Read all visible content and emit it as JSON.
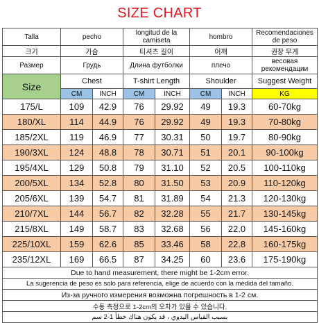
{
  "title": "SIZE CHART",
  "header": {
    "es": [
      "Talla",
      "pecho",
      "longitud de la camiseta",
      "hombro",
      "Recomendaciones de peso"
    ],
    "kr": [
      "크기",
      "가슴",
      "티셔츠 길이",
      "어깨",
      "권장 무게"
    ],
    "ru": [
      "Размер",
      "Грудь",
      "Длина футболки",
      "плечо",
      "весовая рекомендации"
    ],
    "en": {
      "size": "Size",
      "chest": "Chest",
      "length": "T-shirt Length",
      "shoulder": "Shoulder",
      "weight": "Suggest Weight"
    },
    "units": {
      "cm": "CM",
      "inch": "INCH",
      "kg": "KG"
    }
  },
  "rows": [
    {
      "size": "175/L",
      "chest_cm": "109",
      "chest_in": "42.9",
      "len_cm": "76",
      "len_in": "29.92",
      "sh_cm": "49",
      "sh_in": "19.3",
      "weight": "60-70kg"
    },
    {
      "size": "180/XL",
      "chest_cm": "114",
      "chest_in": "44.9",
      "len_cm": "76",
      "len_in": "29.92",
      "sh_cm": "49",
      "sh_in": "19.3",
      "weight": "70-80kg"
    },
    {
      "size": "185/2XL",
      "chest_cm": "119",
      "chest_in": "46.9",
      "len_cm": "77",
      "len_in": "30.31",
      "sh_cm": "50",
      "sh_in": "19.7",
      "weight": "80-90kg"
    },
    {
      "size": "190/3XL",
      "chest_cm": "124",
      "chest_in": "48.8",
      "len_cm": "78",
      "len_in": "30.71",
      "sh_cm": "51",
      "sh_in": "20.1",
      "weight": "90-100kg"
    },
    {
      "size": "195/4XL",
      "chest_cm": "129",
      "chest_in": "50.8",
      "len_cm": "79",
      "len_in": "31.10",
      "sh_cm": "52",
      "sh_in": "20.5",
      "weight": "100-110kg"
    },
    {
      "size": "200/5XL",
      "chest_cm": "134",
      "chest_in": "52.8",
      "len_cm": "80",
      "len_in": "31.50",
      "sh_cm": "53",
      "sh_in": "20.9",
      "weight": "110-120kg"
    },
    {
      "size": "205/6XL",
      "chest_cm": "139",
      "chest_in": "54.7",
      "len_cm": "81",
      "len_in": "31.89",
      "sh_cm": "54",
      "sh_in": "21.3",
      "weight": "120-130kg"
    },
    {
      "size": "210/7XL",
      "chest_cm": "144",
      "chest_in": "56.7",
      "len_cm": "82",
      "len_in": "32.28",
      "sh_cm": "55",
      "sh_in": "21.7",
      "weight": "130-145kg"
    },
    {
      "size": "215/8XL",
      "chest_cm": "149",
      "chest_in": "58.7",
      "len_cm": "83",
      "len_in": "32.68",
      "sh_cm": "56",
      "sh_in": "22.0",
      "weight": "145-160kg"
    },
    {
      "size": "225/10XL",
      "chest_cm": "159",
      "chest_in": "62.6",
      "len_cm": "85",
      "len_in": "33.46",
      "sh_cm": "58",
      "sh_in": "22.8",
      "weight": "160-175kg"
    },
    {
      "size": "235/12XL",
      "chest_cm": "169",
      "chest_in": "66.5",
      "len_cm": "87",
      "len_in": "34.25",
      "sh_cm": "60",
      "sh_in": "23.6",
      "weight": "175-190kg"
    }
  ],
  "notes": [
    "Due to hand measurement, there might be 1-2cm error.",
    "La sugerencia de peso es solo para referencia, elige de acuerdo con la medida del tamaño.",
    "Из-за ручного измерения возможна погрешность в 1-2 см.",
    "수동 측정으로 1-2cm의 오차가 있을 수 있습니다.",
    "بسبب القياس اليدوي ، قد يكون هناك خطأ 1-2 سم"
  ],
  "colors": {
    "title": "#e4131b",
    "size_header": "#a8d08d",
    "cm_header": "#9cc2e5",
    "kg_header": "#ffff00",
    "alt_row": "#f8cba7"
  }
}
